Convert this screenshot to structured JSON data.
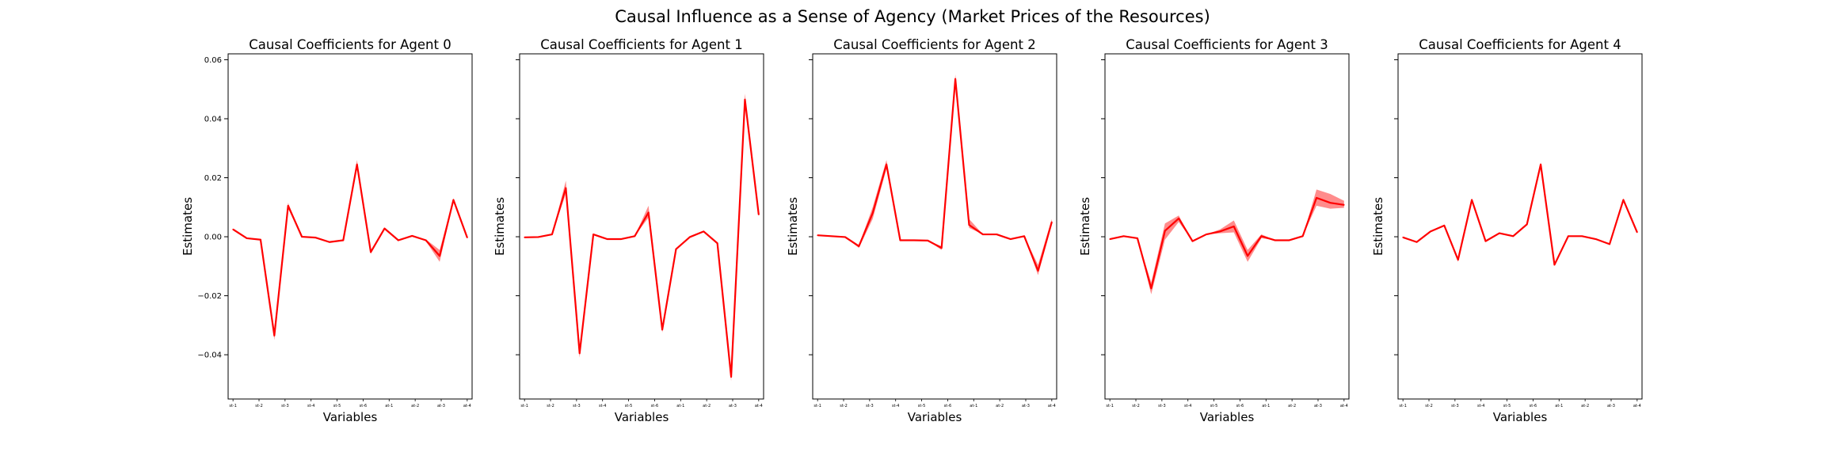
{
  "figure": {
    "suptitle": "Causal Influence as a Sense of Agency (Market Prices of the Resources)"
  },
  "colors": {
    "line": "#ff0000",
    "band": "#ff6666",
    "axes": "#000000"
  },
  "chart_data": [
    {
      "type": "line",
      "title": "Causal Coefficients for Agent 0",
      "xlabel": "Variables",
      "ylabel": "Estimates",
      "ylim": [
        -0.055,
        0.062
      ],
      "yticks": [
        -0.04,
        -0.02,
        0.0,
        0.02,
        0.04,
        0.06
      ],
      "ytick_labels": [
        "−0.04",
        "−0.02",
        "0.00",
        "0.02",
        "0.04",
        "0.06"
      ],
      "xtick_labels": [
        "st-1",
        "st-2",
        "st-3",
        "st-4",
        "st-5",
        "st-6",
        "at-1",
        "at-2",
        "at-3",
        "at-4"
      ],
      "series": [
        {
          "values": [
            0.0025,
            -0.0005,
            -0.001,
            -0.0335,
            0.0105,
            0.0,
            -0.0003,
            -0.0018,
            -0.0012,
            0.0245,
            -0.0052,
            0.0028,
            -0.0012,
            0.0003,
            -0.0012,
            -0.0065,
            0.0125,
            -0.0003
          ],
          "lower": [
            0.0025,
            -0.0005,
            -0.001,
            -0.035,
            0.0095,
            0.0,
            -0.0003,
            -0.0018,
            -0.0012,
            0.023,
            -0.0058,
            0.0028,
            -0.0012,
            0.0003,
            -0.0015,
            -0.0085,
            0.012,
            -0.0003
          ],
          "upper": [
            0.0025,
            -0.0005,
            -0.001,
            -0.032,
            0.0115,
            0.0,
            -0.0003,
            -0.0018,
            -0.0012,
            0.026,
            -0.0046,
            0.0028,
            -0.0012,
            0.0003,
            -0.0009,
            -0.0045,
            0.013,
            -0.0003
          ]
        }
      ]
    },
    {
      "type": "line",
      "title": "Causal Coefficients for Agent 1",
      "xlabel": "Variables",
      "ylabel": "Estimates",
      "ylim": [
        -0.055,
        0.062
      ],
      "yticks": [
        -0.04,
        -0.02,
        0.0,
        0.02,
        0.04,
        0.06
      ],
      "ytick_labels": [],
      "xtick_labels": [
        "st-1",
        "st-2",
        "st-3",
        "st-4",
        "st-5",
        "st-6",
        "at-1",
        "at-2",
        "at-3",
        "at-4"
      ],
      "series": [
        {
          "values": [
            -0.0002,
            -0.0001,
            0.0008,
            0.0165,
            -0.0395,
            0.0008,
            -0.0008,
            -0.0008,
            0.0002,
            0.0082,
            -0.0315,
            -0.0042,
            -0.0001,
            0.0018,
            -0.0022,
            -0.0475,
            0.0465,
            0.0075
          ],
          "lower": [
            -0.0002,
            -0.0001,
            0.0008,
            0.0145,
            -0.041,
            0.0008,
            -0.0008,
            -0.0008,
            0.0002,
            0.0065,
            -0.0325,
            -0.0042,
            -0.0001,
            0.0018,
            -0.0022,
            -0.049,
            0.0455,
            0.0075
          ],
          "upper": [
            -0.0002,
            -0.0001,
            0.0008,
            0.019,
            -0.038,
            0.0008,
            -0.0008,
            -0.0008,
            0.0002,
            0.0105,
            -0.0305,
            -0.0042,
            -0.0001,
            0.0018,
            -0.0022,
            -0.046,
            0.0485,
            0.0075
          ]
        }
      ]
    },
    {
      "type": "line",
      "title": "Causal Coefficients for Agent 2",
      "xlabel": "Variables",
      "ylabel": "Estimates",
      "ylim": [
        -0.055,
        0.062
      ],
      "yticks": [
        -0.04,
        -0.02,
        0.0,
        0.02,
        0.04,
        0.06
      ],
      "ytick_labels": [],
      "xtick_labels": [
        "st-1",
        "st-2",
        "st-3",
        "st-4",
        "st-5",
        "st-6",
        "at-1",
        "at-2",
        "at-3",
        "at-4"
      ],
      "series": [
        {
          "values": [
            0.0005,
            0.0002,
            -0.0001,
            -0.0032,
            0.008,
            0.0245,
            -0.0012,
            -0.0012,
            -0.0013,
            -0.0038,
            0.0535,
            0.004,
            0.0008,
            0.0008,
            -0.0008,
            0.0002,
            -0.0115,
            0.005
          ],
          "lower": [
            0.0005,
            0.0002,
            -0.0001,
            -0.0038,
            0.006,
            0.023,
            -0.0012,
            -0.0012,
            -0.0013,
            -0.0045,
            0.052,
            0.003,
            0.0008,
            0.0008,
            -0.0008,
            0.0002,
            -0.013,
            0.004
          ],
          "upper": [
            0.0005,
            0.0002,
            -0.0001,
            -0.0028,
            0.01,
            0.026,
            -0.0012,
            -0.0012,
            -0.0013,
            -0.0032,
            0.055,
            0.006,
            0.0008,
            0.0008,
            -0.0008,
            0.0002,
            -0.0095,
            0.006
          ]
        }
      ]
    },
    {
      "type": "line",
      "title": "Causal Coefficients for Agent 3",
      "xlabel": "Variables",
      "ylabel": "Estimates",
      "ylim": [
        -0.055,
        0.062
      ],
      "yticks": [
        -0.04,
        -0.02,
        0.0,
        0.02,
        0.04,
        0.06
      ],
      "ytick_labels": [],
      "xtick_labels": [
        "st-1",
        "st-2",
        "st-3",
        "st-4",
        "st-5",
        "st-6",
        "at-1",
        "at-2",
        "at-3",
        "at-4"
      ],
      "series": [
        {
          "values": [
            -0.0008,
            0.0002,
            -0.0005,
            -0.0175,
            0.002,
            0.0062,
            -0.0015,
            0.0008,
            0.0018,
            0.0035,
            -0.0065,
            0.0002,
            -0.0012,
            -0.0012,
            0.0002,
            0.0132,
            0.0115,
            0.0108
          ],
          "lower": [
            -0.0008,
            0.0002,
            -0.0005,
            -0.0195,
            -0.001,
            0.005,
            -0.0015,
            0.0008,
            0.0012,
            0.0015,
            -0.0085,
            -0.0005,
            -0.0012,
            -0.0012,
            0.0002,
            0.0105,
            0.0095,
            0.0098
          ],
          "upper": [
            -0.0008,
            0.0002,
            -0.0005,
            -0.0155,
            0.0045,
            0.0072,
            -0.0015,
            0.0008,
            0.0025,
            0.0055,
            -0.0045,
            0.0008,
            -0.0012,
            -0.0012,
            0.0002,
            0.016,
            0.0145,
            0.0122
          ]
        }
      ]
    },
    {
      "type": "line",
      "title": "Causal Coefficients for Agent 4",
      "xlabel": "Variables",
      "ylabel": "Estimates",
      "ylim": [
        -0.055,
        0.062
      ],
      "yticks": [
        -0.04,
        -0.02,
        0.0,
        0.02,
        0.04,
        0.06
      ],
      "ytick_labels": [],
      "xtick_labels": [
        "st-1",
        "st-2",
        "st-3",
        "st-4",
        "st-5",
        "st-6",
        "at-1",
        "at-2",
        "at-3",
        "at-4"
      ],
      "series": [
        {
          "values": [
            -0.0002,
            -0.0018,
            0.0018,
            0.0038,
            -0.0078,
            0.0125,
            -0.0015,
            0.0012,
            0.0002,
            0.0042,
            0.0245,
            -0.0095,
            0.0002,
            0.0002,
            -0.0008,
            -0.0025,
            0.0125,
            0.0015
          ],
          "lower": [
            -0.0002,
            -0.0018,
            0.0018,
            0.0038,
            -0.0085,
            0.0125,
            -0.0015,
            0.0012,
            0.0002,
            0.0042,
            0.0238,
            -0.0098,
            0.0002,
            0.0002,
            -0.0008,
            -0.0025,
            0.012,
            0.0015
          ],
          "upper": [
            -0.0002,
            -0.0018,
            0.0018,
            0.0038,
            -0.0071,
            0.0125,
            -0.0015,
            0.0012,
            0.0002,
            0.0042,
            0.0252,
            -0.0092,
            0.0002,
            0.0002,
            -0.0008,
            -0.0025,
            0.013,
            0.0015
          ]
        }
      ]
    }
  ]
}
